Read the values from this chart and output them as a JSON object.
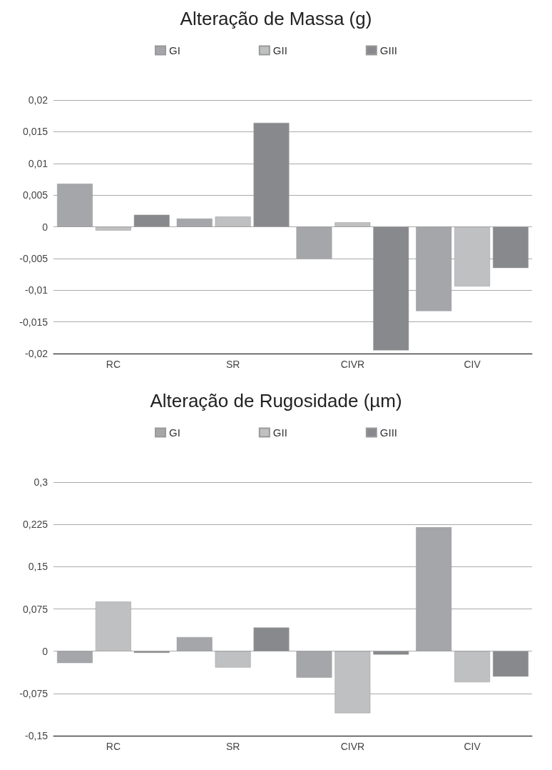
{
  "chart_data": [
    {
      "type": "bar",
      "title": "Alteração de Massa (g)",
      "categories": [
        "RC",
        "SR",
        "CIVR",
        "CIV"
      ],
      "series": [
        {
          "name": "GI",
          "color": "#a5a6aa",
          "values": [
            0.0068,
            0.0013,
            -0.005,
            -0.0133
          ]
        },
        {
          "name": "GII",
          "color": "#bfc0c1",
          "values": [
            -0.0006,
            0.0016,
            0.0007,
            -0.0094
          ]
        },
        {
          "name": "GIII",
          "color": "#88898c",
          "values": [
            0.0019,
            0.0164,
            -0.0195,
            -0.0065
          ]
        }
      ],
      "ylim": [
        -0.02,
        0.02
      ],
      "yticks": [
        {
          "value": -0.02,
          "label": "-0,02"
        },
        {
          "value": -0.015,
          "label": "-0,015"
        },
        {
          "value": -0.01,
          "label": "-0,01"
        },
        {
          "value": -0.005,
          "label": "-0,005"
        },
        0,
        {
          "value": 0.005,
          "label": "0,005"
        },
        {
          "value": 0.01,
          "label": "0,01"
        },
        {
          "value": 0.015,
          "label": "0,015"
        },
        {
          "value": 0.02,
          "label": "0,02"
        }
      ],
      "grid": "y",
      "legend": "top"
    },
    {
      "type": "bar",
      "title": "Alteração de Rugosidade (µm)",
      "categories": [
        "RC",
        "SR",
        "CIVR",
        "CIV"
      ],
      "series": [
        {
          "name": "GI",
          "color": "#a5a6aa",
          "values": [
            -0.021,
            0.025,
            -0.047,
            0.22
          ]
        },
        {
          "name": "GII",
          "color": "#bfc0c1",
          "values": [
            0.088,
            -0.029,
            -0.11,
            -0.055
          ]
        },
        {
          "name": "GIII",
          "color": "#88898c",
          "values": [
            -0.003,
            0.042,
            -0.006,
            -0.045
          ]
        }
      ],
      "ylim": [
        -0.15,
        0.3
      ],
      "yticks": [
        {
          "value": -0.15,
          "label": "-0,15"
        },
        {
          "value": -0.075,
          "label": "-0,075"
        },
        0,
        {
          "value": 0.075,
          "label": "0,075"
        },
        {
          "value": 0.15,
          "label": "0,15"
        },
        {
          "value": 0.225,
          "label": "0,225"
        },
        {
          "value": 0.3,
          "label": "0,3"
        }
      ],
      "grid": "y",
      "legend": "top"
    }
  ]
}
